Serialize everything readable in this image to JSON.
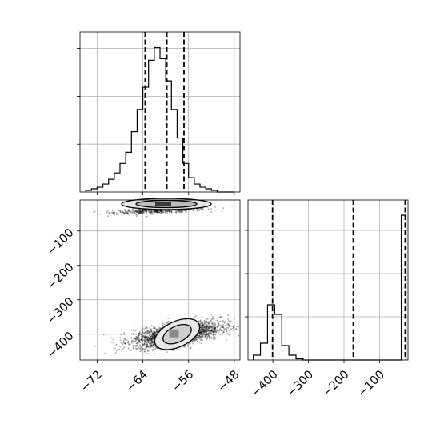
{
  "chart_data": [
    {
      "type": "histogram",
      "panel": "top-left",
      "xlim": [
        -75,
        -47
      ],
      "ylim": [
        0,
        1
      ],
      "x_edges": [
        -74,
        -73,
        -72,
        -71,
        -70,
        -69,
        -68,
        -67,
        -66,
        -65,
        -64,
        -63,
        -62,
        -61,
        -60,
        -59,
        -58,
        -57,
        -56,
        -55,
        -54,
        -53,
        -52,
        -51,
        -50,
        -49,
        -48
      ],
      "counts": [
        0.01,
        0.02,
        0.03,
        0.05,
        0.08,
        0.12,
        0.18,
        0.25,
        0.38,
        0.52,
        0.66,
        0.83,
        0.91,
        0.84,
        0.7,
        0.52,
        0.34,
        0.18,
        0.09,
        0.05,
        0.03,
        0.02,
        0.01,
        0.0,
        0.0,
        0.0
      ],
      "quantiles": [
        -63.6,
        -59.8,
        -56.8
      ],
      "grid": true
    },
    {
      "type": "scatter-contour",
      "panel": "bottom-left",
      "xlim": [
        -75,
        -47
      ],
      "ylim": [
        -475,
        -10
      ],
      "xticks": [
        "−72",
        "−64",
        "−56",
        "−48"
      ],
      "xtick_values": [
        -72,
        -64,
        -56,
        -48
      ],
      "yticks": [
        "−100",
        "−200",
        "−300",
        "−400"
      ],
      "ytick_values": [
        -100,
        -200,
        -300,
        -400
      ],
      "clusters": [
        {
          "x_mean": -61,
          "y_mean": -40,
          "x_std": 4,
          "y_std": 5,
          "n": 550
        },
        {
          "x_mean": -58,
          "y_mean": -400,
          "x_std": 3.8,
          "y_std": 18,
          "n": 2600
        }
      ],
      "grid": true
    },
    {
      "type": "histogram",
      "panel": "bottom-right",
      "xlim": [
        -470,
        -20
      ],
      "ylim": [
        0,
        1
      ],
      "x_edges": [
        -455,
        -435,
        -415,
        -395,
        -375,
        -355,
        -335,
        -315
      ],
      "counts": [
        0.04,
        0.14,
        0.46,
        0.38,
        0.12,
        0.04,
        0.01
      ],
      "spike": {
        "x": -30,
        "count": 1.1
      },
      "xticks": [
        "−400",
        "−300",
        "−200",
        "−100"
      ],
      "xtick_values": [
        -400,
        -300,
        -200,
        -100
      ],
      "quantiles": [
        -401,
        -174,
        -28
      ],
      "grid": true
    }
  ]
}
